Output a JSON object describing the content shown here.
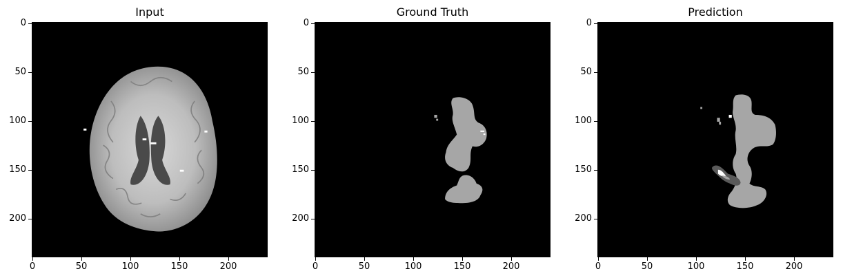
{
  "panels": [
    {
      "title": "Input"
    },
    {
      "title": "Ground Truth"
    },
    {
      "title": "Prediction"
    }
  ],
  "axes": {
    "x_ticks": [
      "0",
      "50",
      "100",
      "150",
      "200"
    ],
    "y_ticks": [
      "0",
      "50",
      "100",
      "150",
      "200"
    ],
    "xlim": [
      0,
      240
    ],
    "ylim": [
      240,
      0
    ]
  },
  "colors": {
    "background": "#000000",
    "mask_gray": "#a6a6a6",
    "mask_dark": "#5a5a5a",
    "mask_white": "#ffffff"
  }
}
